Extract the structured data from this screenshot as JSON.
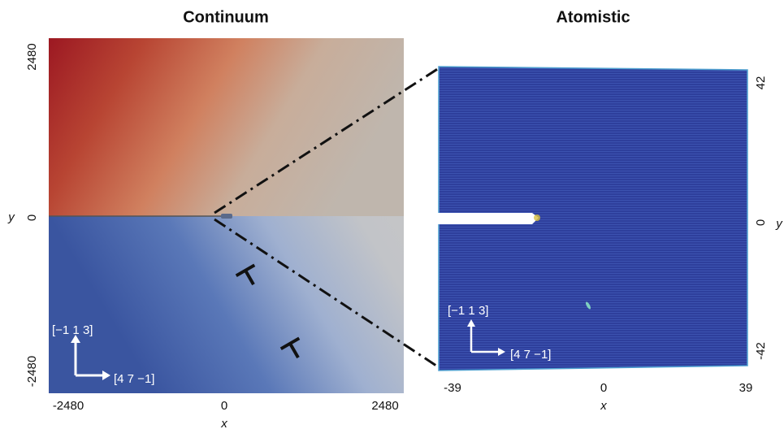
{
  "left_panel": {
    "title": "Continuum",
    "x_label": "x",
    "y_label": "y",
    "x_ticks": [
      "-2480",
      "0",
      "2480"
    ],
    "y_ticks": [
      "2480",
      "0",
      "-2480"
    ],
    "direction_up": "[−1 1 3]",
    "direction_right": "[4 7 −1]"
  },
  "right_panel": {
    "title": "Atomistic",
    "x_label": "x",
    "y_label": "y",
    "x_ticks": [
      "-39",
      "0",
      "39"
    ],
    "y_ticks": [
      "42",
      "0",
      "-42"
    ],
    "direction_up": "[−1 1 3]",
    "direction_right": "[4 7 −1]"
  }
}
